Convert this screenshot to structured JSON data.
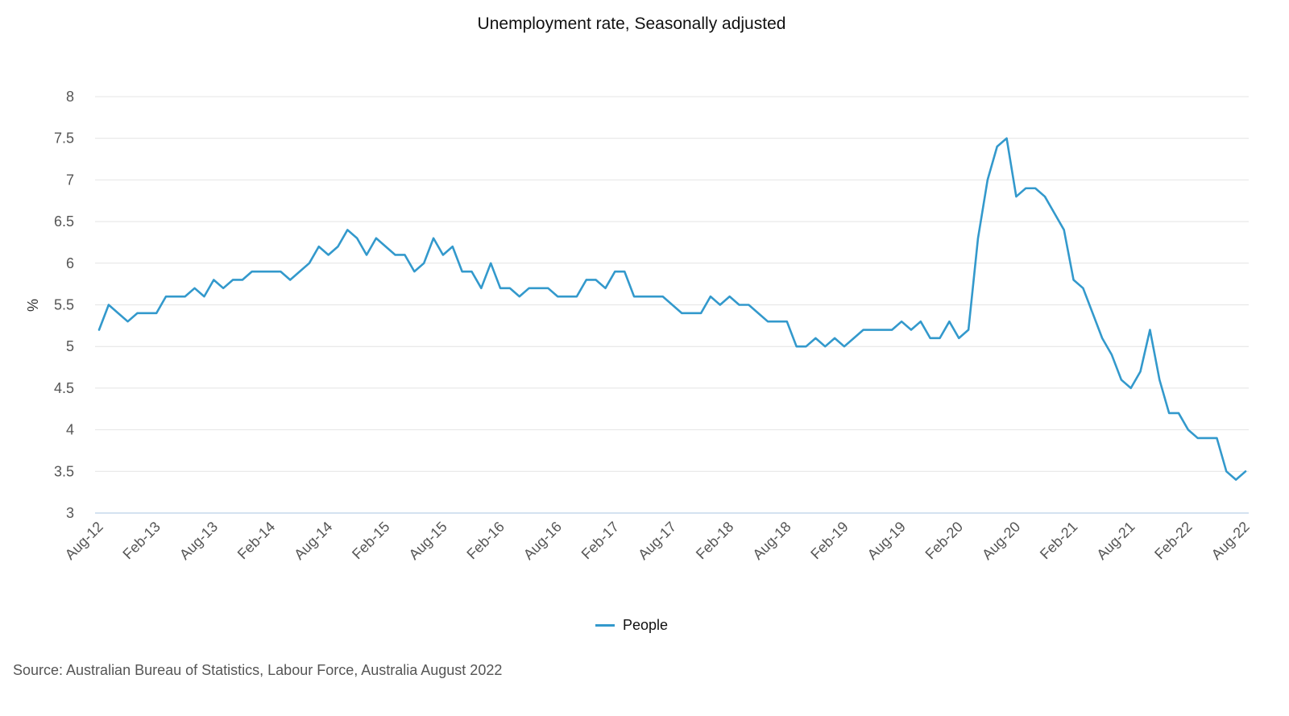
{
  "chart_data": {
    "type": "line",
    "title": "Unemployment rate, Seasonally adjusted",
    "xlabel": "",
    "ylabel": "%",
    "ylim": [
      3,
      8
    ],
    "yticks": [
      "8",
      "7.5",
      "7",
      "6.5",
      "6",
      "5.5",
      "5",
      "4.5",
      "4",
      "3.5",
      "3"
    ],
    "xtick_labels": [
      "Aug-12",
      "Feb-13",
      "Aug-13",
      "Feb-14",
      "Aug-14",
      "Feb-15",
      "Aug-15",
      "Feb-16",
      "Aug-16",
      "Feb-17",
      "Aug-17",
      "Feb-18",
      "Aug-18",
      "Feb-19",
      "Aug-19",
      "Feb-20",
      "Aug-20",
      "Feb-21",
      "Aug-21",
      "Feb-22",
      "Aug-22"
    ],
    "x_start": "Aug-12",
    "x_end": "Aug-22",
    "grid": true,
    "legend_position": "bottom",
    "series": [
      {
        "name": "People",
        "color": "#3399cc",
        "values": [
          5.2,
          5.5,
          5.4,
          5.3,
          5.4,
          5.4,
          5.4,
          5.6,
          5.6,
          5.6,
          5.7,
          5.6,
          5.8,
          5.7,
          5.8,
          5.8,
          5.9,
          5.9,
          5.9,
          5.9,
          5.8,
          5.9,
          6.0,
          6.2,
          6.1,
          6.2,
          6.4,
          6.3,
          6.1,
          6.3,
          6.2,
          6.1,
          6.1,
          5.9,
          6.0,
          6.3,
          6.1,
          6.2,
          5.9,
          5.9,
          5.7,
          6.0,
          5.7,
          5.7,
          5.6,
          5.7,
          5.7,
          5.7,
          5.6,
          5.6,
          5.6,
          5.8,
          5.8,
          5.7,
          5.9,
          5.9,
          5.6,
          5.6,
          5.6,
          5.6,
          5.5,
          5.4,
          5.4,
          5.4,
          5.6,
          5.5,
          5.6,
          5.5,
          5.5,
          5.4,
          5.3,
          5.3,
          5.3,
          5.0,
          5.0,
          5.1,
          5.0,
          5.1,
          5.0,
          5.1,
          5.2,
          5.2,
          5.2,
          5.2,
          5.3,
          5.2,
          5.3,
          5.1,
          5.1,
          5.3,
          5.1,
          5.2,
          6.3,
          7.0,
          7.4,
          7.5,
          6.8,
          6.9,
          6.9,
          6.8,
          6.6,
          6.4,
          5.8,
          5.7,
          5.4,
          5.1,
          4.9,
          4.6,
          4.5,
          4.7,
          5.2,
          4.6,
          4.2,
          4.2,
          4.0,
          3.9,
          3.9,
          3.9,
          3.5,
          3.4,
          3.5
        ]
      }
    ]
  },
  "source": "Source: Australian Bureau of Statistics, Labour Force, Australia August 2022"
}
